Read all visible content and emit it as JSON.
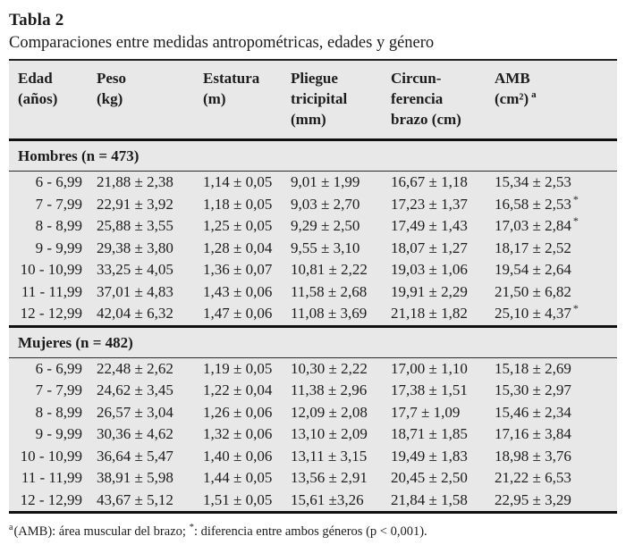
{
  "page": {
    "title": "Tabla 2",
    "subtitle": "Comparaciones entre medidas antropométricas, edades y género"
  },
  "table": {
    "headers": [
      {
        "line1": "Edad",
        "line2": "(años)"
      },
      {
        "line1": "Peso",
        "line2": "(kg)"
      },
      {
        "line1": "Estatura",
        "line2": "(m)"
      },
      {
        "line1": "Pliegue",
        "line2": "tricipital",
        "line3": "(mm)"
      },
      {
        "line1": "Circun-",
        "line2": "ferencia",
        "line3": "brazo (cm)"
      },
      {
        "line1": "AMB",
        "line2": "(cm²)",
        "sup": "a"
      }
    ],
    "hombres": {
      "label": "Hombres (n = 473)",
      "rows": [
        {
          "edad": "6 - 6,99",
          "peso": "21,88 ± 2,38",
          "estatura": "1,14 ± 0,05",
          "pliegue": "9,01 ± 1,99",
          "circ": "16,67 ± 1,18",
          "amb": "15,34 ± 2,53",
          "star": ""
        },
        {
          "edad": "7 - 7,99",
          "peso": "22,91 ± 3,92",
          "estatura": "1,18 ± 0,05",
          "pliegue": "9,03 ± 2,70",
          "circ": "17,23 ± 1,37",
          "amb": "16,58 ± 2,53",
          "star": "*"
        },
        {
          "edad": "8 - 8,99",
          "peso": "25,88 ± 3,55",
          "estatura": "1,25 ± 0,05",
          "pliegue": "9,29 ± 2,50",
          "circ": "17,49 ± 1,43",
          "amb": "17,03 ± 2,84",
          "star": "*"
        },
        {
          "edad": "9 - 9,99",
          "peso": "29,38 ± 3,80",
          "estatura": "1,28 ± 0,04",
          "pliegue": "9,55 ± 3,10",
          "circ": "18,07 ± 1,27",
          "amb": "18,17 ± 2,52",
          "star": ""
        },
        {
          "edad": "10 - 10,99",
          "peso": "33,25 ± 4,05",
          "estatura": "1,36 ± 0,07",
          "pliegue": "10,81 ± 2,22",
          "circ": "19,03 ± 1,06",
          "amb": "19,54 ± 2,64",
          "star": ""
        },
        {
          "edad": "11 - 11,99",
          "peso": "37,01 ± 4,83",
          "estatura": "1,43 ± 0,06",
          "pliegue": "11,58 ± 2,68",
          "circ": "19,91 ± 2,29",
          "amb": "21,50 ± 6,82",
          "star": ""
        },
        {
          "edad": "12 - 12,99",
          "peso": "42,04 ± 6,32",
          "estatura": "1,47 ± 0,06",
          "pliegue": "11,08 ± 3,69",
          "circ": "21,18 ± 1,82",
          "amb": "25,10 ± 4,37",
          "star": "*"
        }
      ]
    },
    "mujeres": {
      "label": "Mujeres (n = 482)",
      "rows": [
        {
          "edad": "6 - 6,99",
          "peso": "22,48 ± 2,62",
          "estatura": "1,19 ± 0,05",
          "pliegue": "10,30 ± 2,22",
          "circ": "17,00 ± 1,10",
          "amb": "15,18 ± 2,69",
          "star": ""
        },
        {
          "edad": "7 - 7,99",
          "peso": "24,62 ± 3,45",
          "estatura": "1,22 ± 0,04",
          "pliegue": "11,38 ± 2,96",
          "circ": "17,38 ± 1,51",
          "amb": "15,30 ± 2,97",
          "star": ""
        },
        {
          "edad": "8 - 8,99",
          "peso": "26,57 ± 3,04",
          "estatura": "1,26 ± 0,06",
          "pliegue": "12,09 ± 2,08",
          "circ": "17,7 ± 1,09",
          "amb": "15,46 ± 2,34",
          "star": ""
        },
        {
          "edad": "9 - 9,99",
          "peso": "30,36 ± 4,62",
          "estatura": "1,32 ± 0,06",
          "pliegue": "13,10 ± 2,09",
          "circ": "18,71 ± 1,85",
          "amb": "17,16 ± 3,84",
          "star": ""
        },
        {
          "edad": "10 - 10,99",
          "peso": "36,64 ± 5,47",
          "estatura": "1,40 ± 0,06",
          "pliegue": "13,11 ± 3,15",
          "circ": "19,49 ± 1,83",
          "amb": "18,98 ± 3,76",
          "star": ""
        },
        {
          "edad": "11 - 11,99",
          "peso": "38,91 ± 5,98",
          "estatura": "1,44 ± 0,05",
          "pliegue": "13,56 ± 2,91",
          "circ": "20,45 ± 2,50",
          "amb": "21,22 ± 6,53",
          "star": ""
        },
        {
          "edad": "12 - 12,99",
          "peso": "43,67 ± 5,12",
          "estatura": "1,51 ± 0,05",
          "pliegue": "15,61 ±3,26",
          "circ": "21,84 ± 1,58",
          "amb": "22,95 ± 3,29",
          "star": ""
        }
      ]
    }
  },
  "footnote": {
    "sup_a": "a",
    "part1": "(AMB): área muscular del brazo; ",
    "sup_star": "*",
    "part2": ": diferencia entre ambos géneros (p < 0,001)."
  }
}
